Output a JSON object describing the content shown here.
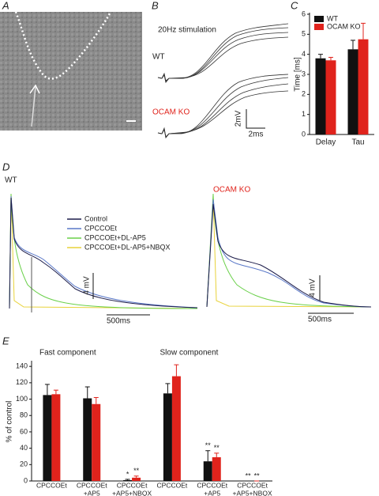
{
  "panels": {
    "a": "A",
    "b": "B",
    "c": "C",
    "d": "D",
    "e": "E"
  },
  "panel_b": {
    "title": "20Hz stimulation",
    "wt": "WT",
    "ko": "OCAM KO",
    "scale_y": "2mV",
    "scale_x": "2ms"
  },
  "panel_d": {
    "wt": "WT",
    "ko": "OCAM KO",
    "scale_y": "4 mV",
    "scale_x": "500ms",
    "legend": [
      {
        "name": "Control",
        "color": "#1c1c4a"
      },
      {
        "name": "CPCCOEt",
        "color": "#5a78c8"
      },
      {
        "name": "CPCCOEt+DL-AP5",
        "color": "#6ad04a"
      },
      {
        "name": "CPCCOEt+DL-AP5+NBQX",
        "color": "#e8d23a"
      }
    ]
  },
  "chart_data": [
    {
      "type": "bar",
      "ylabel": "Time [ms]",
      "categories": [
        "Delay",
        "Tau"
      ],
      "series": [
        {
          "name": "WT",
          "color": "#111111",
          "values": [
            3.8,
            4.25
          ],
          "errors": [
            0.2,
            0.45
          ]
        },
        {
          "name": "OCAM KO",
          "color": "#e0231c",
          "values": [
            3.7,
            4.75
          ],
          "errors": [
            0.15,
            0.8
          ]
        }
      ],
      "ylim": [
        0,
        6
      ],
      "yticks": [
        0,
        1,
        2,
        3,
        4,
        5,
        6
      ],
      "legend": "upper left"
    },
    {
      "type": "bar",
      "ylabel": "% of control",
      "group_titles": [
        "Fast component",
        "Slow component"
      ],
      "categories": [
        [
          "CPCCOEt"
        ],
        [
          "CPCCOEt",
          "+AP5"
        ],
        [
          "CPCCOEt",
          "+AP5+NBQX"
        ],
        [
          "CPCCOEt"
        ],
        [
          "CPCCOEt",
          "+AP5"
        ],
        [
          "CPCCOEt",
          "+AP5+NBQX"
        ]
      ],
      "series": [
        {
          "name": "WT",
          "color": "#111111",
          "values": [
            105,
            101,
            1,
            107,
            24,
            0
          ],
          "errors": [
            13,
            14,
            1,
            12,
            13,
            0
          ],
          "significance": [
            null,
            null,
            "*",
            null,
            "**",
            "**"
          ]
        },
        {
          "name": "OCAM KO",
          "color": "#e0231c",
          "values": [
            106,
            94,
            4,
            128,
            29,
            0
          ],
          "errors": [
            5,
            8,
            2,
            14,
            5,
            0
          ],
          "significance": [
            null,
            null,
            "**",
            null,
            "**",
            "**"
          ]
        }
      ],
      "ylim": [
        0,
        145
      ],
      "yticks": [
        0,
        20,
        40,
        60,
        80,
        100,
        120,
        140
      ]
    }
  ]
}
